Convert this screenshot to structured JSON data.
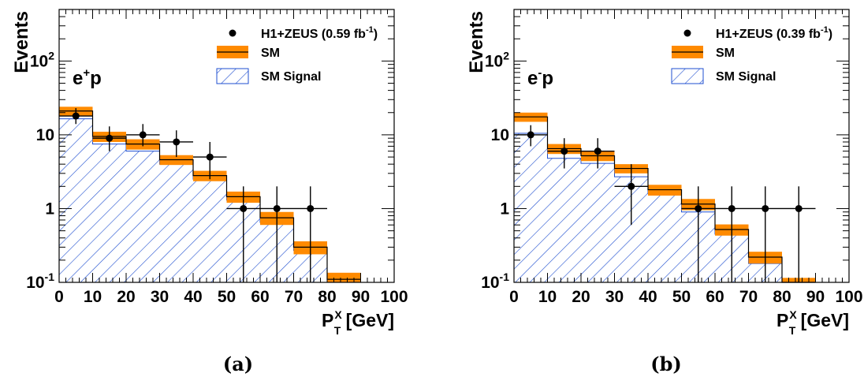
{
  "colors": {
    "sm_band": "#ff8a00",
    "sm_line": "#000000",
    "signal_hatch": "#1f4fd0",
    "data_points": "#000000"
  },
  "chart_data": [
    {
      "type": "histogram",
      "panel_label": "(a)",
      "process_label": {
        "base": "e",
        "sup": "+",
        "rest": "p"
      },
      "ylabel": "Events",
      "xlabel": {
        "base": "P",
        "sup": "X",
        "sub": "T",
        "rest": " [GeV]"
      },
      "xlim": [
        0,
        100
      ],
      "ylim": [
        0.1,
        500
      ],
      "yscale": "log",
      "x_ticks": [
        "0",
        "10",
        "20",
        "30",
        "40",
        "50",
        "60",
        "70",
        "80",
        "90",
        "100"
      ],
      "y_ticks": [
        {
          "base": "10",
          "sup": "-1"
        },
        {
          "base": "1",
          "sup": ""
        },
        {
          "base": "10",
          "sup": ""
        },
        {
          "base": "10",
          "sup": "2"
        }
      ],
      "legend": {
        "position": "top-right",
        "data": {
          "text": "H1+ZEUS (0.59 fb",
          "sup": "-1",
          "close": ")"
        },
        "sm": "SM",
        "signal": "SM Signal"
      },
      "bin_edges": [
        0,
        10,
        20,
        30,
        40,
        50,
        60,
        70,
        80,
        90
      ],
      "sm": [
        21,
        9.5,
        7.5,
        4.6,
        2.8,
        1.45,
        0.75,
        0.3,
        0.11
      ],
      "sm_err": [
        3,
        1.5,
        1.2,
        0.7,
        0.45,
        0.25,
        0.15,
        0.06,
        0.025
      ],
      "signal": [
        16.5,
        7.5,
        6,
        4,
        2.5,
        1.3,
        0.65,
        0.27,
        0.1
      ],
      "data_x": [
        5,
        15,
        25,
        35,
        45,
        55,
        65,
        75
      ],
      "data_y": [
        18,
        9,
        10,
        8,
        5,
        1,
        1,
        1
      ],
      "data_err_lo": [
        4,
        3,
        3,
        3,
        2.5,
        0.9,
        0.9,
        0.9
      ],
      "data_err_hi": [
        5,
        4,
        4,
        3.5,
        3,
        1,
        1,
        1
      ]
    },
    {
      "type": "histogram",
      "panel_label": "(b)",
      "process_label": {
        "base": "e",
        "sup": "-",
        "rest": "p"
      },
      "ylabel": "Events",
      "xlabel": {
        "base": "P",
        "sup": "X",
        "sub": "T",
        "rest": " [GeV]"
      },
      "xlim": [
        0,
        100
      ],
      "ylim": [
        0.1,
        500
      ],
      "yscale": "log",
      "x_ticks": [
        "0",
        "10",
        "20",
        "30",
        "40",
        "50",
        "60",
        "70",
        "80",
        "90",
        "100"
      ],
      "y_ticks": [
        {
          "base": "10",
          "sup": "-1"
        },
        {
          "base": "1",
          "sup": ""
        },
        {
          "base": "10",
          "sup": ""
        },
        {
          "base": "10",
          "sup": "2"
        }
      ],
      "legend": {
        "position": "top-right",
        "data": {
          "text": "H1+ZEUS (0.39 fb",
          "sup": "-1",
          "close": ")"
        },
        "sm": "SM",
        "signal": "SM Signal"
      },
      "bin_edges": [
        0,
        10,
        20,
        30,
        40,
        50,
        60,
        70,
        80,
        90
      ],
      "sm": [
        17.5,
        6.5,
        5.2,
        3.5,
        1.8,
        1.15,
        0.52,
        0.22,
        0.1
      ],
      "sm_err": [
        2.5,
        1.0,
        0.8,
        0.5,
        0.3,
        0.2,
        0.09,
        0.04,
        0.015
      ],
      "signal": [
        10.5,
        4.8,
        4.1,
        2.7,
        1.6,
        0.9,
        0.45,
        0.18,
        0.08
      ],
      "data_x": [
        5,
        15,
        25,
        35,
        55,
        65,
        75,
        85
      ],
      "data_y": [
        10,
        6,
        6,
        2,
        1,
        1,
        1,
        1
      ],
      "data_err_lo": [
        3,
        2.5,
        2.5,
        1.4,
        0.9,
        0.9,
        0.9,
        0.9
      ],
      "data_err_hi": [
        3.5,
        3,
        3,
        2,
        1,
        1,
        1,
        1
      ]
    }
  ]
}
